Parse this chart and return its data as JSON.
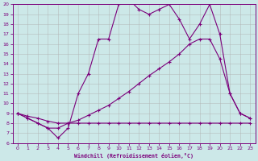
{
  "xlabel": "Windchill (Refroidissement éolien,°C)",
  "bg_color": "#cce8e8",
  "line_color": "#7b007b",
  "grid_color": "#b0b0b0",
  "xmin": 0,
  "xmax": 23,
  "ymin": 6,
  "ymax": 20,
  "line1_x": [
    0,
    1,
    2,
    3,
    4,
    5,
    6,
    7,
    8,
    9,
    10,
    11,
    12,
    13,
    14,
    15,
    16,
    17,
    18,
    19,
    20,
    21,
    22,
    23
  ],
  "line1_y": [
    9,
    8.5,
    8,
    7.5,
    7.5,
    8,
    8,
    8,
    8,
    8,
    8,
    8,
    8,
    8,
    8,
    8,
    8,
    8,
    8,
    8,
    8,
    8,
    8,
    8
  ],
  "line2_x": [
    0,
    1,
    2,
    3,
    4,
    5,
    6,
    7,
    8,
    9,
    10,
    11,
    12,
    13,
    14,
    15,
    16,
    17,
    18,
    19,
    20,
    21,
    22,
    23
  ],
  "line2_y": [
    9,
    8.5,
    8,
    7.5,
    6.5,
    7.5,
    11,
    13,
    16.5,
    16.5,
    20,
    20.5,
    19.5,
    19,
    19.5,
    20,
    18.5,
    16.5,
    18,
    20,
    17,
    11,
    9,
    8.5
  ],
  "line3_x": [
    0,
    1,
    2,
    3,
    4,
    5,
    6,
    7,
    8,
    9,
    10,
    11,
    12,
    13,
    14,
    15,
    16,
    17,
    18,
    19,
    20,
    21,
    22,
    23
  ],
  "line3_y": [
    9,
    8.7,
    8.5,
    8.2,
    8,
    8,
    8.3,
    8.8,
    9.3,
    9.8,
    10.5,
    11.2,
    12,
    12.8,
    13.5,
    14.2,
    15,
    16,
    16.5,
    16.5,
    14.5,
    11,
    9,
    8.5
  ]
}
